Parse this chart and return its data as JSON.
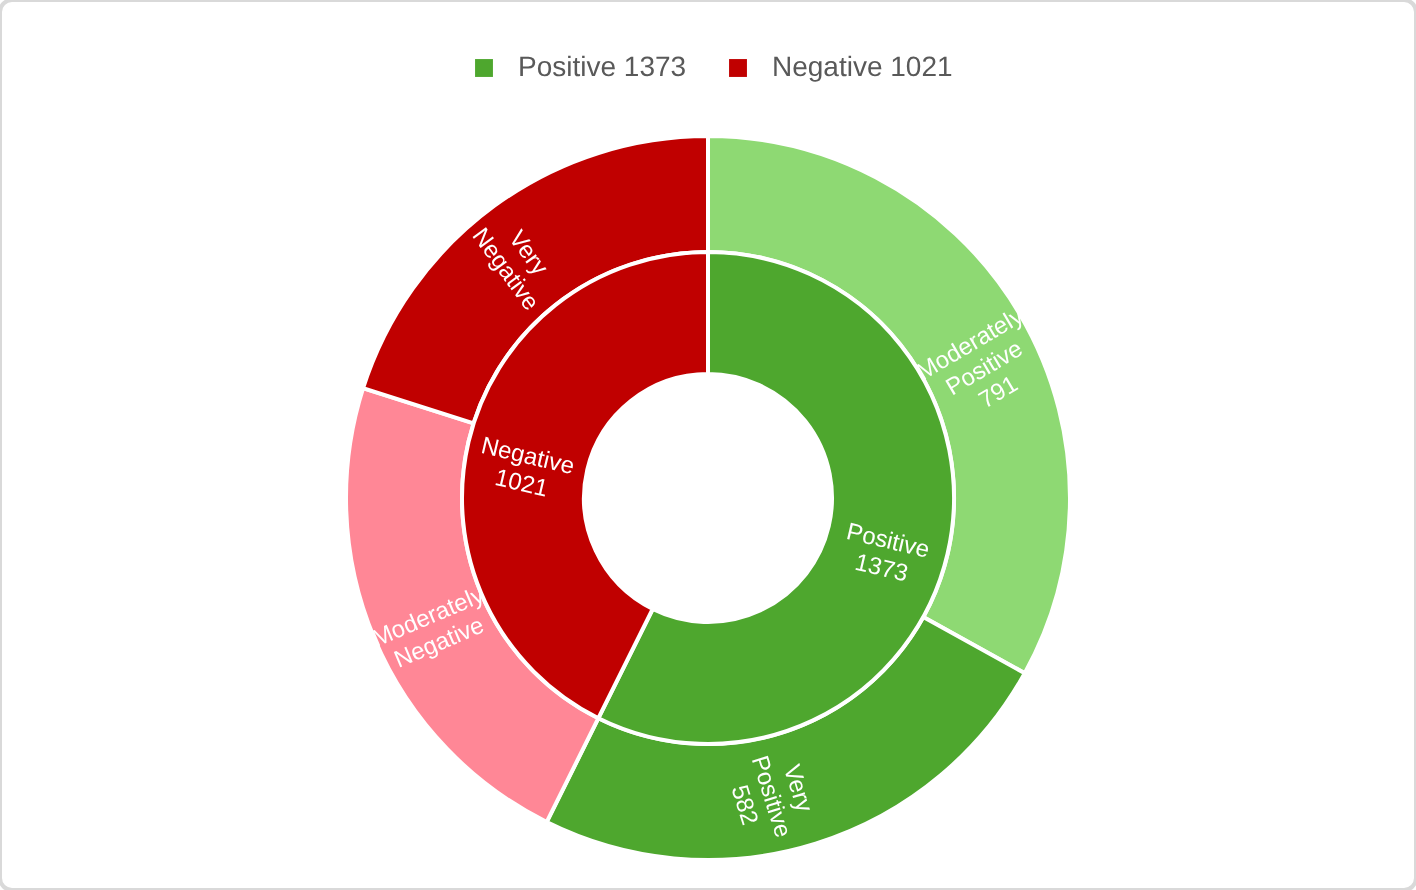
{
  "chart_data": {
    "type": "donut",
    "legend": "top",
    "categories": [
      "Moderately Positive 791",
      "Very Positive 582",
      "Moderately Negative",
      "Very Negative",
      "Positive 1373",
      "Negative 1021"
    ],
    "colors": [
      "#8ed973",
      "#4ea72e",
      "#ff8796",
      "#c00000",
      "#4ea72e",
      "#c00000"
    ],
    "series": [
      {
        "values": [
          791,
          582,
          540,
          481,
          null,
          null
        ]
      },
      {
        "values": [
          null,
          null,
          null,
          null,
          1373,
          1021
        ]
      }
    ]
  }
}
